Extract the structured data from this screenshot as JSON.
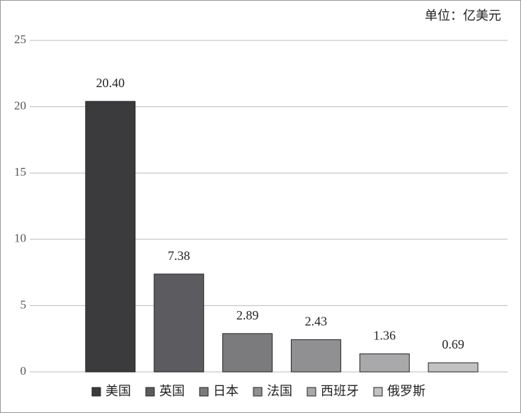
{
  "chart_data": {
    "type": "bar",
    "subtitle": "单位：亿美元",
    "categories": [
      "美国",
      "英国",
      "日本",
      "法国",
      "西班牙",
      "俄罗斯"
    ],
    "values": [
      20.4,
      7.38,
      2.89,
      2.43,
      1.36,
      0.69
    ],
    "value_labels": [
      "20.40",
      "7.38",
      "2.89",
      "2.43",
      "1.36",
      "0.69"
    ],
    "colors": [
      "#3b3b3d",
      "#5c5c60",
      "#7b7b7d",
      "#909092",
      "#a9a9ab",
      "#c2c2c4"
    ],
    "ylim": [
      0,
      25
    ],
    "yticks": [
      0,
      5,
      10,
      15,
      20,
      25
    ],
    "grid": true
  }
}
